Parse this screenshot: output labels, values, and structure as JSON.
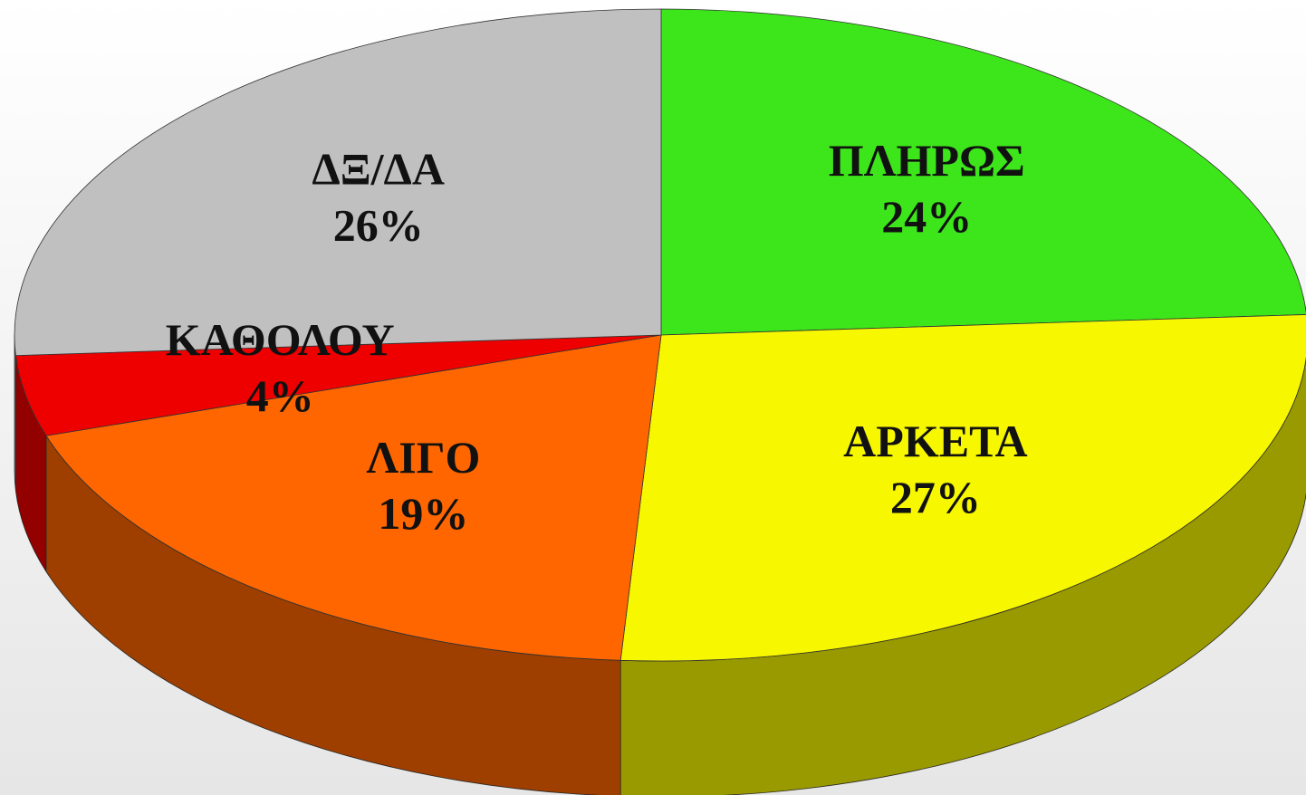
{
  "chart_data": {
    "type": "pie",
    "categories": [
      "ΠΛΗΡΩΣ",
      "ΑΡΚΕΤΑ",
      "ΛΙΓΟ",
      "ΚΑΘΟΛΟΥ",
      "ΔΞ/ΔΑ"
    ],
    "values": [
      24,
      27,
      19,
      4,
      26
    ],
    "value_labels": [
      "24%",
      "27%",
      "19%",
      "4%",
      "26%"
    ],
    "colors": [
      "#3de61a",
      "#f7f700",
      "#ff6600",
      "#ee0000",
      "#c0c0c0"
    ]
  }
}
